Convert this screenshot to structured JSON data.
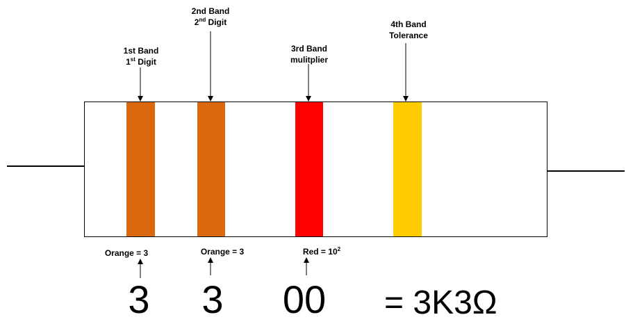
{
  "labels": {
    "band1": {
      "line1": "1st Band",
      "line2_main": "1",
      "line2_sup": "st",
      "line2_rest": " Digit"
    },
    "band2": {
      "line1": "2nd Band",
      "line2_main": "2",
      "line2_sup": "nd",
      "line2_rest": " Digit"
    },
    "band3": {
      "line1": "3rd Band",
      "line2": "mulitplier"
    },
    "band4": {
      "line1": "4th Band",
      "line2": "Tolerance"
    }
  },
  "values": {
    "band1": "Orange = 3",
    "band2": "Orange = 3",
    "band3_main": "Red = 10",
    "band3_sup": "2"
  },
  "digits": {
    "d1": "3",
    "d2": "3",
    "d3": "00",
    "result": "= 3K3Ω"
  },
  "colors": {
    "orange": "#D9680F",
    "red": "#FF0000",
    "gold": "#FFCC00",
    "outline": "#000000"
  }
}
